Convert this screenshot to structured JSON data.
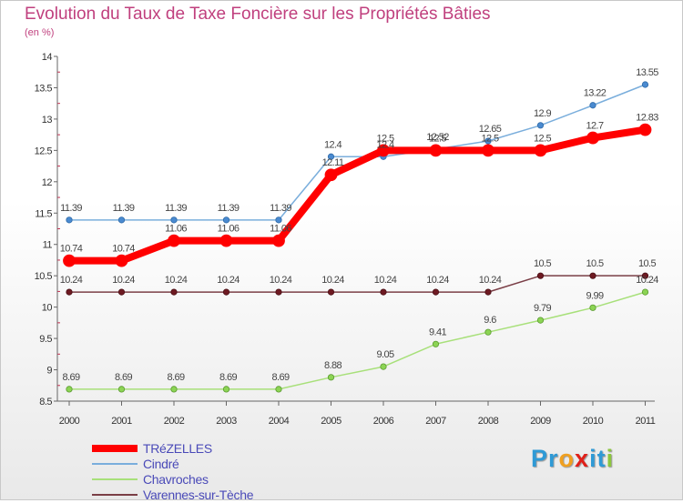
{
  "chart_data": {
    "type": "line",
    "title": "Evolution du Taux de Taxe Foncière sur les Propriétés Bâties",
    "subtitle": "(en %)",
    "x": [
      "2000",
      "2001",
      "2002",
      "2003",
      "2004",
      "2005",
      "2006",
      "2007",
      "2008",
      "2009",
      "2010",
      "2011"
    ],
    "ylim": [
      8.5,
      14
    ],
    "yticks": [
      "8.5",
      "9",
      "9.5",
      "10",
      "10.5",
      "11",
      "11.5",
      "12",
      "12.5",
      "13",
      "13.5",
      "14"
    ],
    "grid": false,
    "legend_position": "bottom-left",
    "series": [
      {
        "name": "TRéZELLES",
        "color": "#ff0000",
        "values": [
          10.74,
          10.74,
          11.06,
          11.06,
          11.06,
          12.11,
          12.5,
          12.5,
          12.5,
          12.5,
          12.7,
          12.83
        ],
        "labels": [
          "10.74",
          "10.74",
          "11.06",
          "11.06",
          "11.06",
          "12.11",
          "12.5",
          "12.5",
          "12.5",
          "12.5",
          "12.7",
          "12.83"
        ]
      },
      {
        "name": "Cindré",
        "color": "#7aaedc",
        "values": [
          11.39,
          11.39,
          11.39,
          11.39,
          11.39,
          12.4,
          12.4,
          12.52,
          12.65,
          12.9,
          13.22,
          13.55
        ],
        "labels": [
          "11.39",
          "11.39",
          "11.39",
          "11.39",
          "11.39",
          "12.4",
          "12.4",
          "12.52",
          "12.65",
          "12.9",
          "13.22",
          "13.55"
        ]
      },
      {
        "name": "Chavroches",
        "color": "#a8e07a",
        "values": [
          8.69,
          8.69,
          8.69,
          8.69,
          8.69,
          8.88,
          9.05,
          9.41,
          9.6,
          9.79,
          9.99,
          10.24
        ],
        "labels": [
          "8.69",
          "8.69",
          "8.69",
          "8.69",
          "8.69",
          "8.88",
          "9.05",
          "9.41",
          "9.6",
          "9.79",
          "9.99",
          "10.24"
        ]
      },
      {
        "name": "Varennes-sur-Tèche",
        "color": "#7a3e46",
        "values": [
          10.24,
          10.24,
          10.24,
          10.24,
          10.24,
          10.24,
          10.24,
          10.24,
          10.24,
          10.5,
          10.5,
          10.5
        ],
        "labels": [
          "10.24",
          "10.24",
          "10.24",
          "10.24",
          "10.24",
          "10.24",
          "10.24",
          "10.24",
          "10.24",
          "10.5",
          "10.5",
          "10.5"
        ]
      }
    ]
  },
  "logo": {
    "text": "Proxiti",
    "letters": [
      "P",
      "r",
      "o",
      "x",
      "i",
      "t",
      "i"
    ],
    "colors": [
      "#2f9ad6",
      "#2f9ad6",
      "#f0a020",
      "#e0201a",
      "#2f9ad6",
      "#2f9ad6",
      "#8cc63e"
    ]
  }
}
